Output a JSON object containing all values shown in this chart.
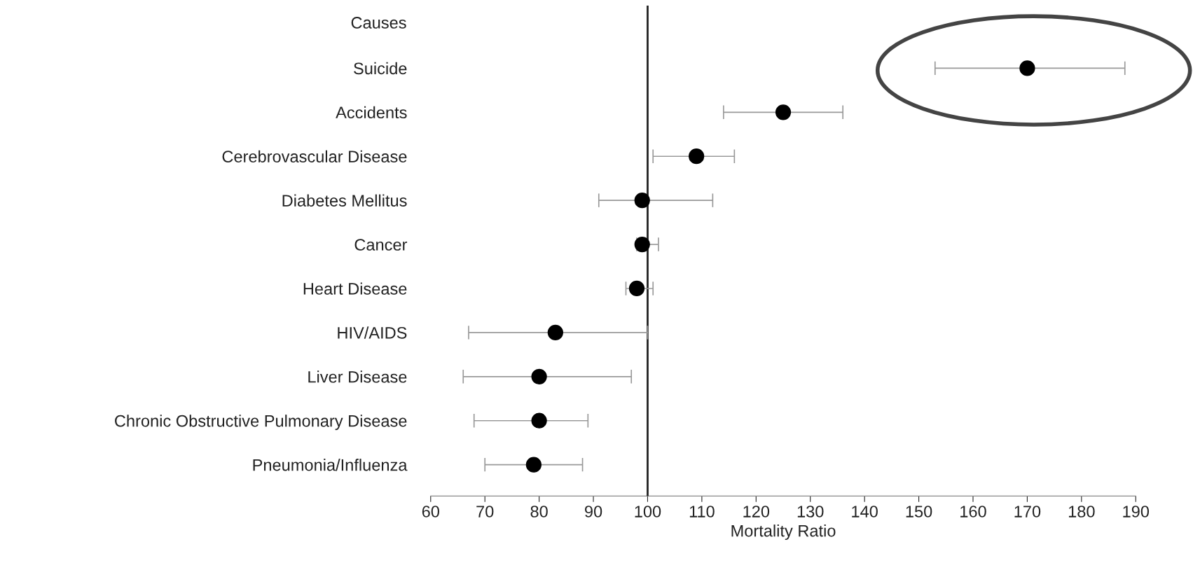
{
  "chart_data": {
    "type": "scatter",
    "orientation": "horizontal",
    "xlabel": "Mortality Ratio",
    "ylabel": "Causes",
    "categories": [
      "Suicide",
      "Accidents",
      "Cerebrovascular Disease",
      "Diabetes Mellitus",
      "Cancer",
      "Heart Disease",
      "HIV/AIDS",
      "Liver Disease",
      "Chronic Obstructive Pulmonary Disease",
      "Pneumonia/Influenza"
    ],
    "values": [
      170,
      125,
      109,
      99,
      99,
      98,
      83,
      80,
      80,
      79
    ],
    "errors": [
      [
        153,
        188
      ],
      [
        114,
        136
      ],
      [
        101,
        116
      ],
      [
        91,
        112
      ],
      [
        98,
        102
      ],
      [
        96,
        101
      ],
      [
        67,
        100
      ],
      [
        66,
        97
      ],
      [
        68,
        89
      ],
      [
        70,
        88
      ]
    ],
    "color": "#000000",
    "marker": "circle",
    "xlim": [
      60,
      190
    ],
    "xticks": [
      60,
      70,
      80,
      90,
      100,
      110,
      120,
      130,
      140,
      150,
      160,
      170,
      180,
      190
    ],
    "ref_lines": [
      {
        "axis": "x",
        "value": 100,
        "label": null,
        "color": "#222222"
      }
    ],
    "grid": false,
    "legend": false
  }
}
